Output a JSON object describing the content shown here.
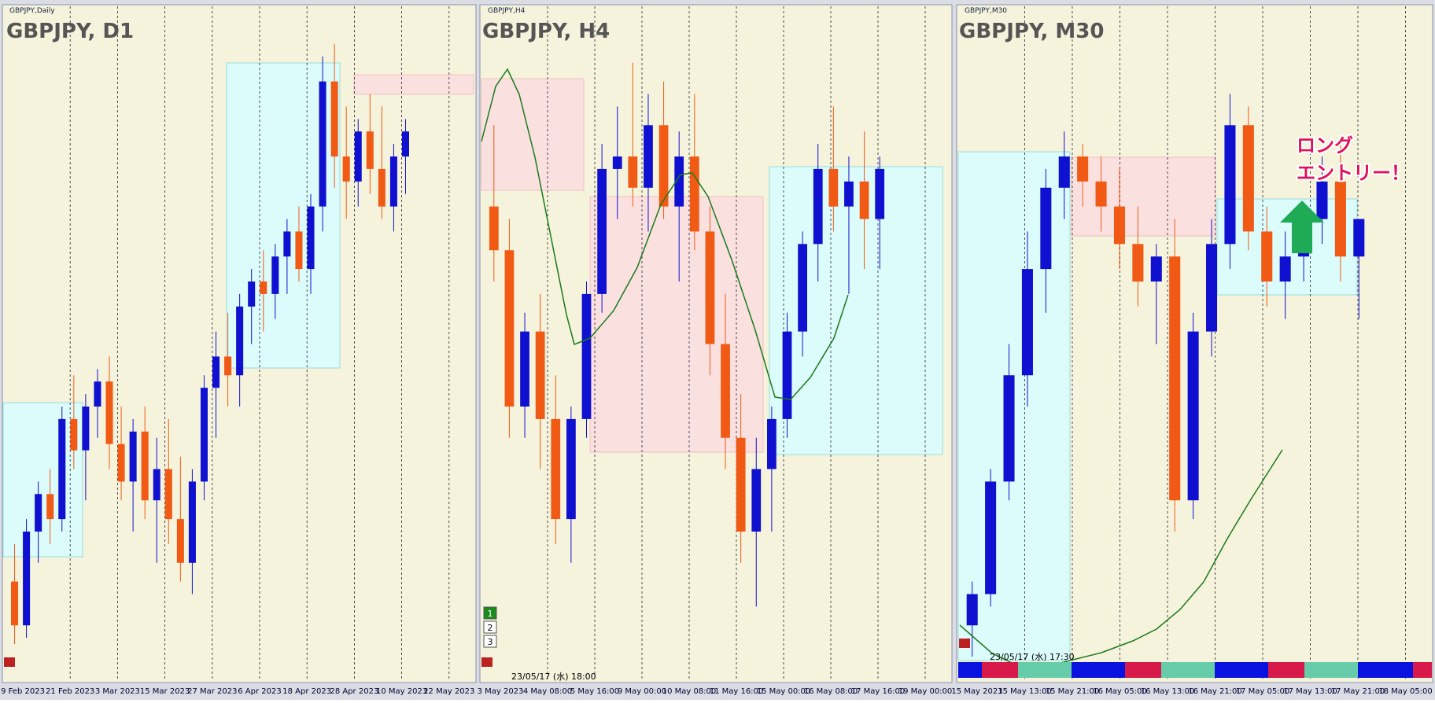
{
  "panels": [
    {
      "window_label": "GBPJPY,Daily",
      "title": "GBPJPY, D1",
      "x_labels": [
        "9 Feb 2023",
        "21 Feb 2023",
        "3 Mar 2023",
        "15 Mar 2023",
        "27 Mar 2023",
        "6 Apr 2023",
        "18 Apr 2023",
        "28 Apr 2023",
        "10 May 2023",
        "22 May 2023"
      ],
      "candles": [
        [
          12,
          18,
          2,
          5
        ],
        [
          5,
          22,
          3,
          20
        ],
        [
          20,
          28,
          15,
          26
        ],
        [
          26,
          30,
          18,
          22
        ],
        [
          22,
          40,
          20,
          38
        ],
        [
          38,
          45,
          30,
          33
        ],
        [
          33,
          42,
          25,
          40
        ],
        [
          40,
          46,
          35,
          44
        ],
        [
          44,
          48,
          30,
          34
        ],
        [
          34,
          40,
          25,
          28
        ],
        [
          28,
          38,
          20,
          36
        ],
        [
          36,
          40,
          22,
          25
        ],
        [
          25,
          35,
          15,
          30
        ],
        [
          30,
          38,
          18,
          22
        ],
        [
          22,
          32,
          12,
          15
        ],
        [
          15,
          30,
          10,
          28
        ],
        [
          28,
          45,
          25,
          43
        ],
        [
          43,
          52,
          35,
          48
        ],
        [
          48,
          55,
          40,
          45
        ],
        [
          45,
          58,
          40,
          56
        ],
        [
          56,
          62,
          50,
          60
        ],
        [
          60,
          65,
          52,
          58
        ],
        [
          58,
          66,
          54,
          64
        ],
        [
          64,
          70,
          58,
          68
        ],
        [
          68,
          72,
          60,
          62
        ],
        [
          62,
          74,
          58,
          72
        ],
        [
          72,
          96,
          68,
          92
        ],
        [
          92,
          98,
          75,
          80
        ],
        [
          80,
          88,
          70,
          76
        ],
        [
          76,
          86,
          72,
          84
        ],
        [
          84,
          90,
          74,
          78
        ],
        [
          78,
          88,
          70,
          72
        ],
        [
          72,
          82,
          68,
          80
        ],
        [
          80,
          86,
          74,
          84
        ]
      ]
    },
    {
      "window_label": "GBPJPY,H4",
      "title": "GBPJPY, H4",
      "cursor_time": "23/05/17 (水) 18:00",
      "buttons": [
        "1",
        "2",
        "3"
      ],
      "x_labels": [
        "3 May 2023",
        "4 May 08:00",
        "5 May 16:00",
        "9 May 00:00",
        "10 May 08:00",
        "11 May 16:00",
        "15 May 00:00",
        "16 May 08:00",
        "17 May 16:00",
        "19 May 00:00"
      ],
      "candles": [
        [
          72,
          85,
          60,
          65
        ],
        [
          65,
          70,
          35,
          40
        ],
        [
          40,
          55,
          35,
          52
        ],
        [
          52,
          58,
          30,
          38
        ],
        [
          38,
          45,
          18,
          22
        ],
        [
          22,
          40,
          15,
          38
        ],
        [
          38,
          60,
          35,
          58
        ],
        [
          58,
          82,
          55,
          78
        ],
        [
          78,
          88,
          70,
          80
        ],
        [
          80,
          95,
          72,
          75
        ],
        [
          75,
          90,
          68,
          85
        ],
        [
          85,
          92,
          70,
          72
        ],
        [
          72,
          84,
          60,
          80
        ],
        [
          80,
          90,
          65,
          68
        ],
        [
          68,
          72,
          45,
          50
        ],
        [
          50,
          58,
          30,
          35
        ],
        [
          35,
          42,
          15,
          20
        ],
        [
          20,
          35,
          8,
          30
        ],
        [
          30,
          40,
          20,
          38
        ],
        [
          38,
          55,
          35,
          52
        ],
        [
          52,
          68,
          48,
          66
        ],
        [
          66,
          82,
          60,
          78
        ],
        [
          78,
          88,
          68,
          72
        ],
        [
          72,
          80,
          58,
          76
        ],
        [
          76,
          84,
          62,
          70
        ],
        [
          70,
          80,
          62,
          78
        ]
      ]
    },
    {
      "window_label": "GBPJPY,M30",
      "title": "GBPJPY, M30",
      "cursor_time": "23/05/17 (水) 17:30",
      "annotation": [
        "ロング",
        "エントリー！"
      ],
      "x_labels": [
        "15 May 2023",
        "15 May 13:00",
        "15 May 21:00",
        "16 May 05:00",
        "16 May 13:00",
        "16 May 21:00",
        "17 May 05:00",
        "17 May 13:00",
        "17 May 21:00",
        "18 May 05:00"
      ],
      "candles": [
        [
          5,
          12,
          0,
          10
        ],
        [
          10,
          30,
          8,
          28
        ],
        [
          28,
          50,
          25,
          45
        ],
        [
          45,
          68,
          40,
          62
        ],
        [
          62,
          78,
          55,
          75
        ],
        [
          75,
          84,
          70,
          80
        ],
        [
          80,
          82,
          72,
          76
        ],
        [
          76,
          80,
          68,
          72
        ],
        [
          72,
          78,
          62,
          66
        ],
        [
          66,
          72,
          56,
          60
        ],
        [
          60,
          66,
          50,
          64
        ],
        [
          64,
          70,
          20,
          25
        ],
        [
          25,
          55,
          22,
          52
        ],
        [
          52,
          70,
          48,
          66
        ],
        [
          66,
          90,
          62,
          85
        ],
        [
          85,
          88,
          65,
          68
        ],
        [
          68,
          72,
          56,
          60
        ],
        [
          60,
          68,
          54,
          64
        ],
        [
          64,
          72,
          60,
          70
        ],
        [
          70,
          80,
          66,
          76
        ],
        [
          76,
          82,
          60,
          64
        ],
        [
          64,
          70,
          54,
          70
        ]
      ]
    }
  ]
}
